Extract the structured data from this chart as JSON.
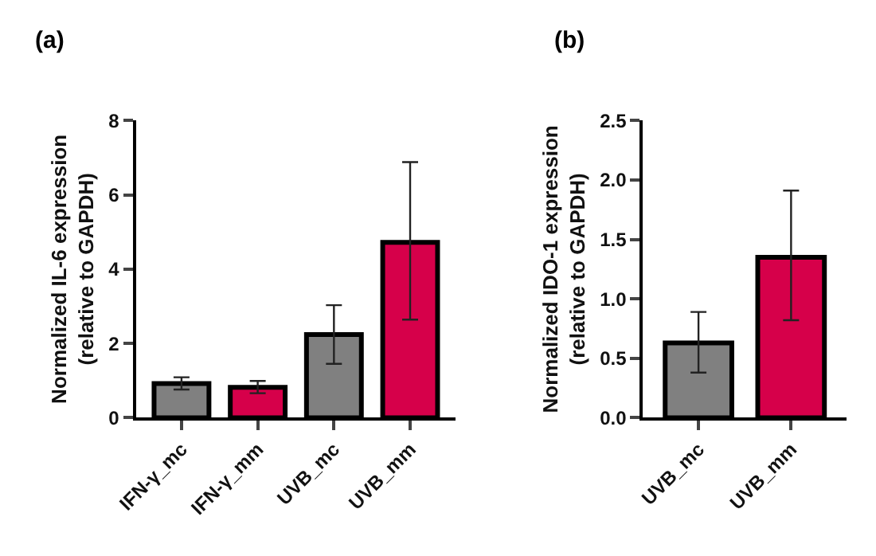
{
  "chart_data": [
    {
      "type": "bar",
      "title": "(a)",
      "ylabel": "Normalized IL-6 expression\n(relative to GAPDH)",
      "categories": [
        "IFN-γ_mc",
        "IFN-γ_mm",
        "UVB_mc",
        "UVB_mm"
      ],
      "values": [
        0.92,
        0.82,
        2.24,
        4.72
      ],
      "errors": [
        [
          0.76,
          1.09
        ],
        [
          0.66,
          0.99
        ],
        [
          1.45,
          3.03
        ],
        [
          2.64,
          6.88
        ]
      ],
      "colors": [
        "#808080",
        "#d6004a",
        "#808080",
        "#d6004a"
      ],
      "ylim": [
        0,
        8
      ],
      "yticks": [
        0,
        2,
        4,
        6,
        8
      ]
    },
    {
      "type": "bar",
      "title": "(b)",
      "ylabel": "Normalized IDO-1 expression\n(relative to GAPDH)",
      "categories": [
        "UVB_mc",
        "UVB_mm"
      ],
      "values": [
        0.63,
        1.35
      ],
      "errors": [
        [
          0.38,
          0.89
        ],
        [
          0.82,
          1.91
        ]
      ],
      "colors": [
        "#808080",
        "#d6004a"
      ],
      "ylim": [
        0,
        2.5
      ],
      "yticks": [
        {
          "value": 0,
          "label": "0.0"
        },
        {
          "value": 0.5,
          "label": "0.5"
        },
        {
          "value": 1,
          "label": "1.0"
        },
        {
          "value": 1.5,
          "label": "1.5"
        },
        {
          "value": 2.0,
          "label": "2.0"
        },
        {
          "value": 2.5,
          "label": "2.5"
        }
      ]
    }
  ]
}
